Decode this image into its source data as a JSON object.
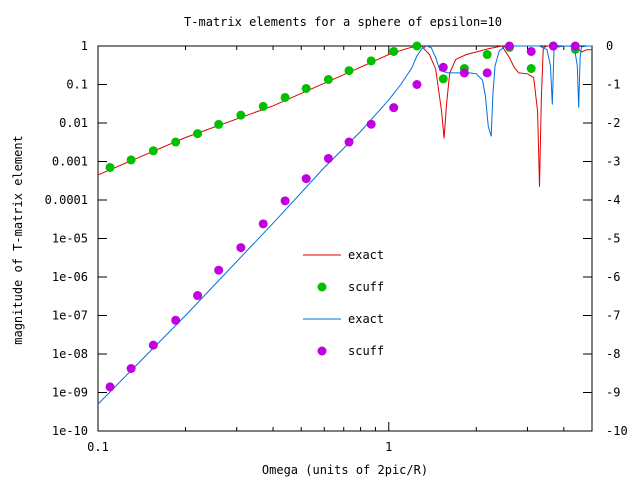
{
  "chart_data": {
    "type": "scatter",
    "title": "T-matrix elements for a sphere of epsilon=10",
    "xlabel": "Omega (units of 2pic/R)",
    "ylabel": "magnitude of T-matrix element",
    "xscale": "log",
    "yscale": "log",
    "xlim": [
      0.1,
      5.0
    ],
    "ylim": [
      1e-10,
      1
    ],
    "y2lim": [
      -10,
      0
    ],
    "grid": false,
    "legend_position": "center",
    "x_ticks": [
      {
        "value": 0.1,
        "label": "0.1"
      },
      {
        "value": 1,
        "label": "1"
      }
    ],
    "y_ticks": [
      {
        "value": 1,
        "label": "1"
      },
      {
        "value": 0.1,
        "label": "0.1"
      },
      {
        "value": 0.01,
        "label": "0.01"
      },
      {
        "value": 0.001,
        "label": "0.001"
      },
      {
        "value": 0.0001,
        "label": "0.0001"
      },
      {
        "value": 1e-05,
        "label": "1e-05"
      },
      {
        "value": 1e-06,
        "label": "1e-06"
      },
      {
        "value": 1e-07,
        "label": "1e-07"
      },
      {
        "value": 1e-08,
        "label": "1e-08"
      },
      {
        "value": 1e-09,
        "label": "1e-09"
      },
      {
        "value": 1e-10,
        "label": "1e-10"
      }
    ],
    "y2_ticks": [
      {
        "value": 0,
        "label": "0"
      },
      {
        "value": -1,
        "label": "-1"
      },
      {
        "value": -2,
        "label": "-2"
      },
      {
        "value": -3,
        "label": "-3"
      },
      {
        "value": -4,
        "label": "-4"
      },
      {
        "value": -5,
        "label": "-5"
      },
      {
        "value": -6,
        "label": "-6"
      },
      {
        "value": -7,
        "label": "-7"
      },
      {
        "value": -8,
        "label": "-8"
      },
      {
        "value": -9,
        "label": "-9"
      },
      {
        "value": -10,
        "label": "-10"
      }
    ],
    "series": [
      {
        "name": "exact",
        "kind": "line",
        "color": "#e00000",
        "x": [
          0.1,
          0.2,
          0.4,
          0.7,
          1.0,
          1.15,
          1.25,
          1.3,
          1.38,
          1.45,
          1.52,
          1.55,
          1.58,
          1.62,
          1.7,
          1.85,
          2.0,
          2.2,
          2.45,
          2.6,
          2.7,
          2.8,
          3.0,
          3.15,
          3.25,
          3.3,
          3.35,
          3.4,
          3.5,
          3.7,
          3.85,
          4.0,
          4.2,
          4.4,
          4.6,
          4.8,
          5.0
        ],
        "y": [
          0.00045,
          0.0042,
          0.028,
          0.18,
          0.6,
          0.85,
          1.0,
          0.97,
          0.6,
          0.25,
          0.02,
          0.004,
          0.03,
          0.2,
          0.45,
          0.6,
          0.7,
          0.85,
          1.0,
          0.5,
          0.28,
          0.2,
          0.19,
          0.15,
          0.02,
          0.00022,
          0.05,
          0.9,
          1.0,
          1.0,
          0.95,
          1.0,
          1.0,
          0.95,
          0.7,
          0.8,
          0.8
        ]
      },
      {
        "name": "scuff",
        "kind": "points",
        "color": "#00c000",
        "x": [
          0.11,
          0.13,
          0.155,
          0.185,
          0.22,
          0.26,
          0.31,
          0.37,
          0.44,
          0.52,
          0.62,
          0.73,
          0.87,
          1.04,
          1.25,
          1.54,
          1.82,
          2.18,
          2.6,
          3.09,
          3.68,
          4.38
        ],
        "y": [
          0.0007,
          0.0011,
          0.0019,
          0.0032,
          0.0053,
          0.0092,
          0.016,
          0.027,
          0.046,
          0.079,
          0.135,
          0.23,
          0.41,
          0.72,
          1.0,
          0.14,
          0.26,
          0.6,
          0.92,
          0.26,
          1.0,
          0.82
        ]
      },
      {
        "name": "exact",
        "kind": "line",
        "color": "#0070e0",
        "x": [
          0.1,
          0.2,
          0.4,
          0.6,
          0.8,
          1.0,
          1.1,
          1.2,
          1.25,
          1.3,
          1.35,
          1.4,
          1.45,
          1.5,
          1.6,
          1.7,
          1.8,
          1.9,
          2.0,
          2.1,
          2.15,
          2.2,
          2.25,
          2.28,
          2.32,
          2.4,
          2.5,
          2.6,
          2.7,
          3.0,
          3.3,
          3.5,
          3.6,
          3.65,
          3.7,
          3.8,
          4.0,
          4.2,
          4.35,
          4.45,
          4.5,
          4.55,
          4.6,
          4.8,
          5.0
        ],
        "y": [
          5e-10,
          1e-07,
          2.5e-05,
          0.0007,
          0.006,
          0.04,
          0.1,
          0.27,
          0.55,
          0.85,
          1.0,
          0.9,
          0.5,
          0.23,
          0.2,
          0.2,
          0.2,
          0.2,
          0.19,
          0.13,
          0.05,
          0.008,
          0.0045,
          0.05,
          0.3,
          0.75,
          0.95,
          1.0,
          1.0,
          1.0,
          1.0,
          0.8,
          0.3,
          0.03,
          0.8,
          0.95,
          1.0,
          1.0,
          0.9,
          0.3,
          0.025,
          0.5,
          0.95,
          1.0,
          1.0
        ]
      },
      {
        "name": "scuff",
        "kind": "points",
        "color": "#c000e0",
        "x": [
          0.11,
          0.13,
          0.155,
          0.185,
          0.22,
          0.26,
          0.31,
          0.37,
          0.44,
          0.52,
          0.62,
          0.73,
          0.87,
          1.04,
          1.25,
          1.54,
          1.82,
          2.18,
          2.6,
          3.09,
          3.68,
          4.38
        ],
        "y": [
          1.4e-09,
          4.2e-09,
          1.7e-08,
          7.5e-08,
          3.3e-07,
          1.5e-06,
          5.8e-06,
          2.4e-05,
          9.5e-05,
          0.00036,
          0.0012,
          0.0032,
          0.0093,
          0.025,
          0.1,
          0.28,
          0.2,
          0.2,
          1.0,
          0.72,
          1.0,
          1.0
        ]
      }
    ]
  }
}
